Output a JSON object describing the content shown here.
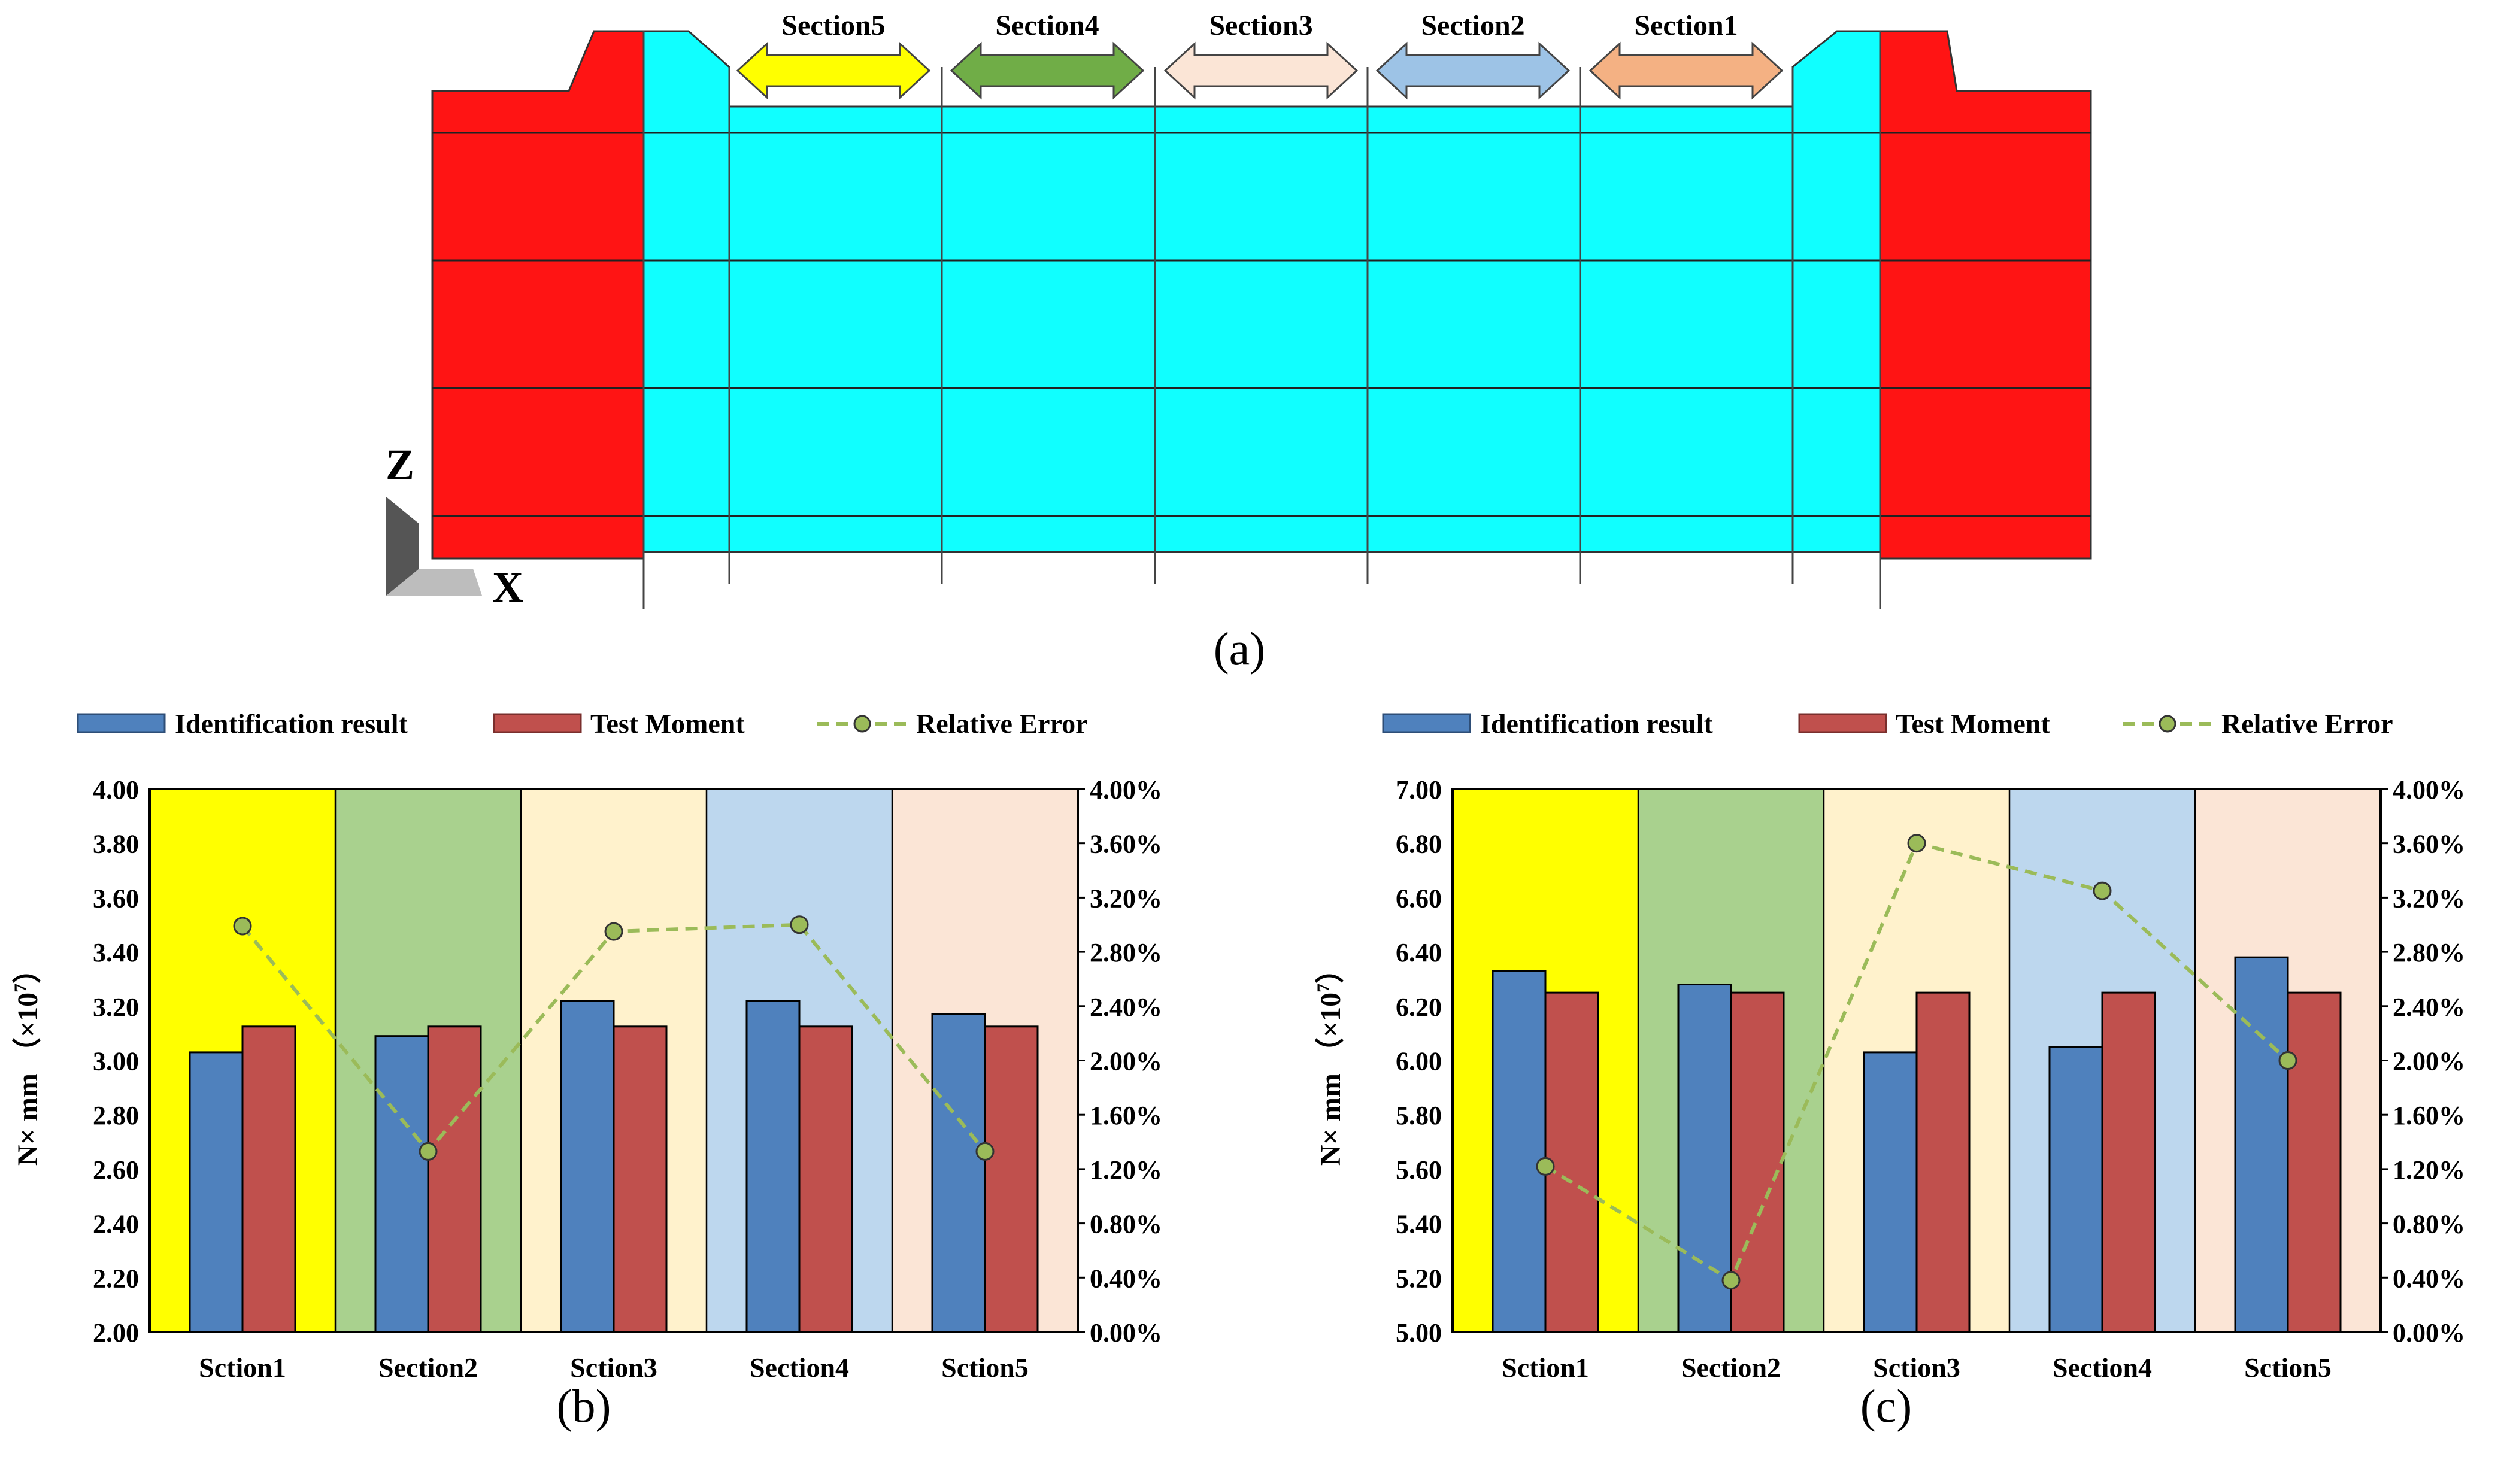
{
  "panel_a": {
    "caption": "(a)",
    "axis_labels": {
      "z": "Z",
      "x": "X"
    },
    "section_arrows": [
      {
        "label": "Section5",
        "color": "#FFFF00"
      },
      {
        "label": "Section4",
        "color": "#70AD47"
      },
      {
        "label": "Section3",
        "color": "#FBE5D6"
      },
      {
        "label": "Section2",
        "color": "#9DC3E6"
      },
      {
        "label": "Section1",
        "color": "#F4B183"
      }
    ],
    "colors": {
      "abutment": "#FF1414",
      "beam": "#10FFFF"
    }
  },
  "legend": {
    "identification": "Identification result",
    "test": "Test Moment",
    "error": "Relative Error"
  },
  "colors": {
    "identification": "#4F81BD",
    "test": "#C0504D",
    "error": "#9BBB59",
    "bands": [
      "#FFFF00",
      "#A9D18E",
      "#FFF2CC",
      "#BDD7EE",
      "#FBE5D6"
    ]
  },
  "chart_data": [
    {
      "type": "bar",
      "caption": "(b)",
      "ylabel": "N× mm （×10",
      "ylabel_sup": "7",
      "ylabel_end": "）",
      "categories": [
        "Sction1",
        "Section2",
        "Sction3",
        "Section4",
        "Sction5"
      ],
      "ylim": [
        2.0,
        4.0
      ],
      "ytick_step": 0.2,
      "y_ticks": [
        "2.00",
        "2.20",
        "2.40",
        "2.60",
        "2.80",
        "3.00",
        "3.20",
        "3.40",
        "3.60",
        "3.80",
        "4.00"
      ],
      "y2lim": [
        0,
        4
      ],
      "y2_ticks": [
        "0.00%",
        "0.40%",
        "0.80%",
        "1.20%",
        "1.60%",
        "2.00%",
        "2.40%",
        "2.80%",
        "3.20%",
        "3.60%",
        "4.00%"
      ],
      "series": [
        {
          "name": "Identification result",
          "values": [
            3.03,
            3.09,
            3.22,
            3.22,
            3.17
          ]
        },
        {
          "name": "Test Moment",
          "values": [
            3.125,
            3.125,
            3.125,
            3.125,
            3.125
          ]
        },
        {
          "name": "Relative Error",
          "axis": "right",
          "unit": "%",
          "values": [
            2.99,
            1.33,
            2.95,
            3.0,
            1.33
          ]
        }
      ]
    },
    {
      "type": "bar",
      "caption": "(c)",
      "ylabel": "N× mm （×10",
      "ylabel_sup": "7",
      "ylabel_end": "）",
      "categories": [
        "Sction1",
        "Section2",
        "Sction3",
        "Section4",
        "Sction5"
      ],
      "ylim": [
        5.0,
        7.0
      ],
      "ytick_step": 0.2,
      "y_ticks": [
        "5.00",
        "5.20",
        "5.40",
        "5.60",
        "5.80",
        "6.00",
        "6.20",
        "6.40",
        "6.60",
        "6.80",
        "7.00"
      ],
      "y2lim": [
        0,
        4
      ],
      "y2_ticks": [
        "0.00%",
        "0.40%",
        "0.80%",
        "1.20%",
        "1.60%",
        "2.00%",
        "2.40%",
        "2.80%",
        "3.20%",
        "3.60%",
        "4.00%"
      ],
      "series": [
        {
          "name": "Identification result",
          "values": [
            6.33,
            6.28,
            6.03,
            6.05,
            6.38
          ]
        },
        {
          "name": "Test Moment",
          "values": [
            6.25,
            6.25,
            6.25,
            6.25,
            6.25
          ]
        },
        {
          "name": "Relative Error",
          "axis": "right",
          "unit": "%",
          "values": [
            1.22,
            0.38,
            3.6,
            3.25,
            2.0
          ]
        }
      ]
    }
  ]
}
